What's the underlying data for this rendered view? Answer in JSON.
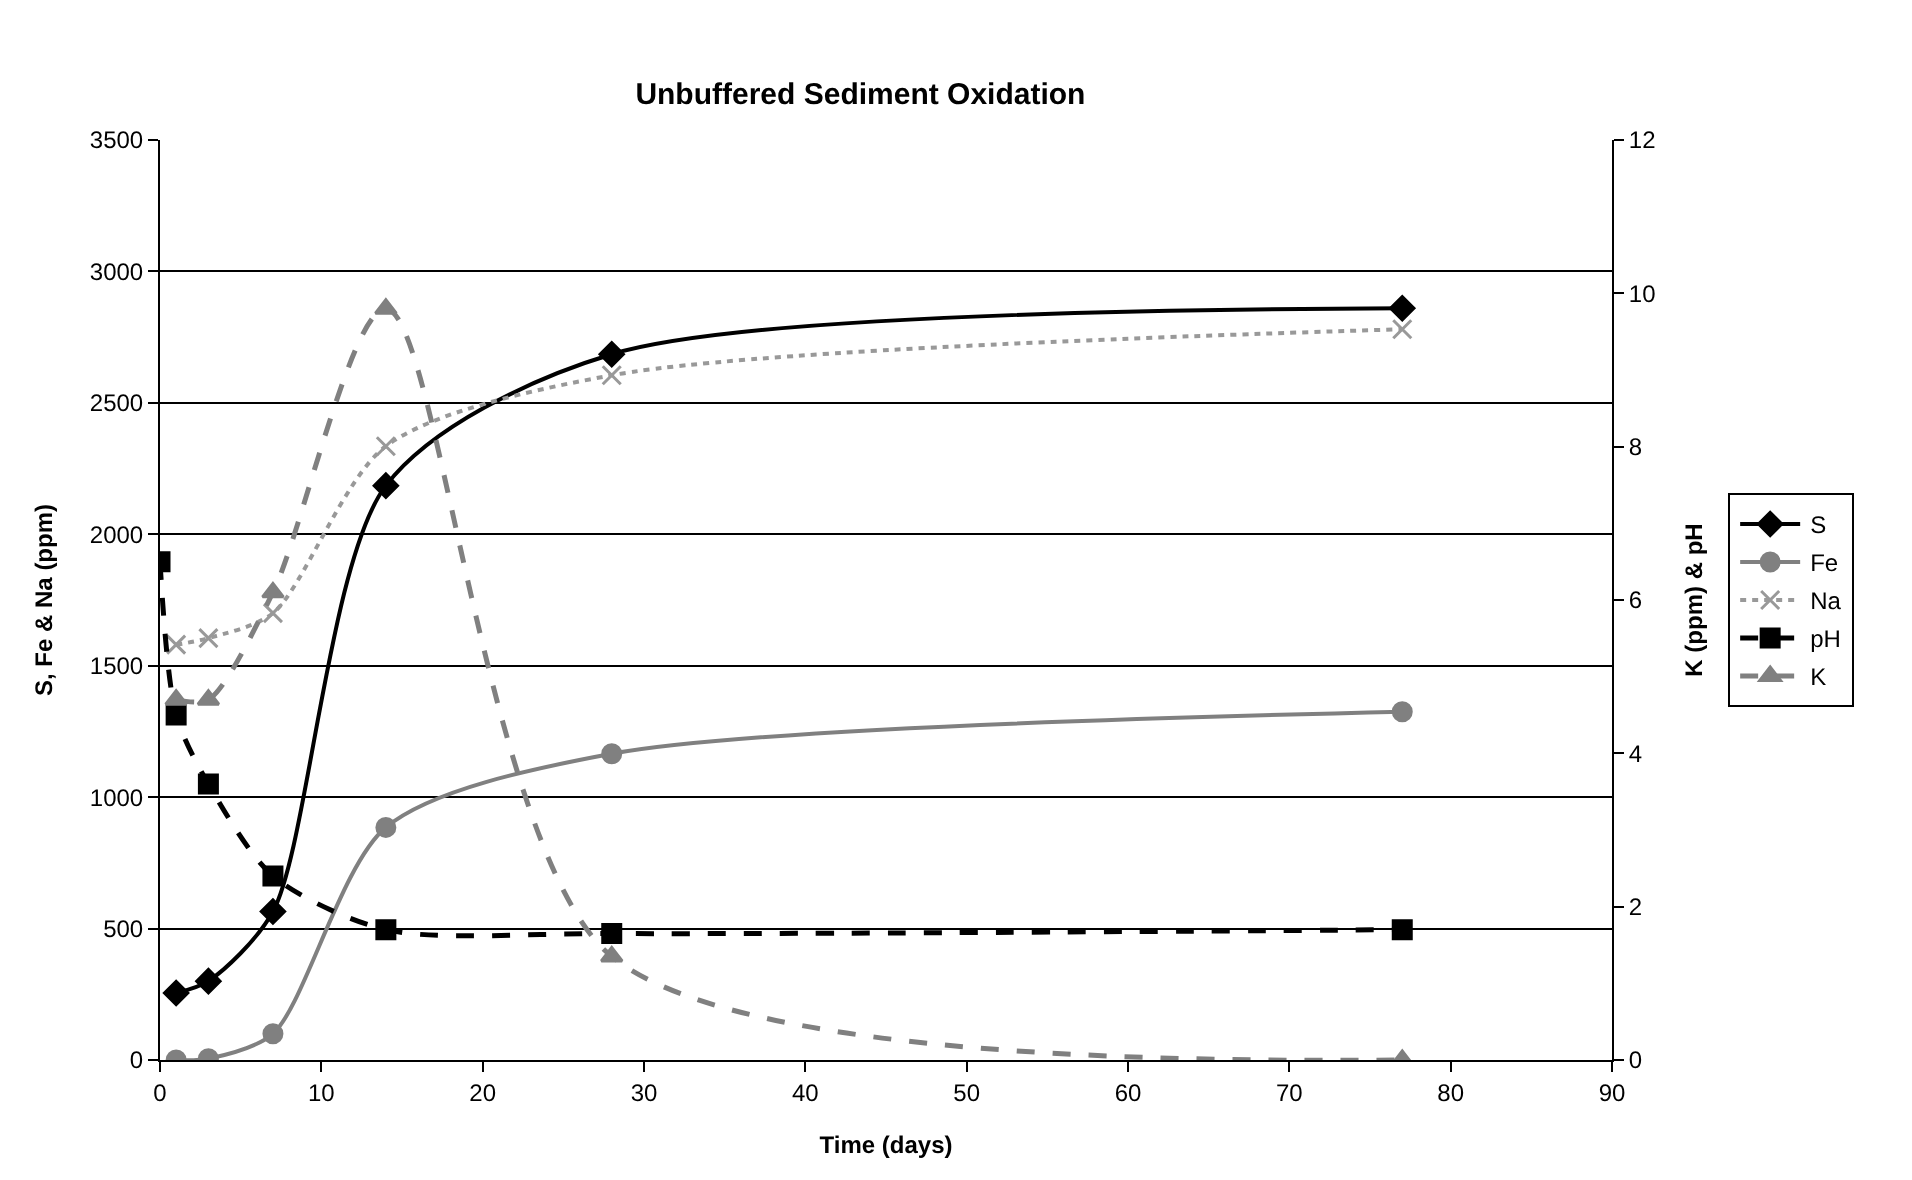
{
  "chart_data": {
    "type": "line",
    "title": "Unbuffered Sediment Oxidation",
    "xlabel": "Time (days)",
    "ylabel": "S, Fe & Na (ppm)",
    "y2label": "K (ppm) & pH",
    "x": [
      1,
      3,
      7,
      14,
      28,
      77
    ],
    "series": [
      {
        "name": "S",
        "color": "#000000",
        "marker": "diamond",
        "line_style": "solid",
        "values": [
          255,
          300,
          565,
          2185,
          2685,
          2860
        ]
      },
      {
        "name": "Fe",
        "color": "#808080",
        "marker": "circle",
        "line_style": "solid",
        "values": [
          0,
          5,
          100,
          885,
          1165,
          1325
        ]
      },
      {
        "name": "Na",
        "color": "#999999",
        "marker": "cross",
        "line_style": "dotted",
        "values": [
          1580,
          1605,
          1700,
          2335,
          2605,
          2780
        ]
      },
      {
        "name": "pH",
        "color": "#000000",
        "marker": "square",
        "line_style": "dashed",
        "axis": "y2",
        "x": [
          0,
          1,
          3,
          7,
          14,
          28,
          77
        ],
        "values": [
          6.5,
          4.5,
          3.6,
          2.4,
          1.7,
          1.65,
          1.7
        ]
      },
      {
        "name": "K",
        "color": "#808080",
        "marker": "triangle",
        "line_style": "dashed",
        "axis": "y2",
        "values": [
          4.7,
          4.7,
          6.1,
          9.8,
          1.35,
          0
        ]
      }
    ],
    "xlim": [
      0,
      90
    ],
    "xticks": [
      0,
      10,
      20,
      30,
      40,
      50,
      60,
      70,
      80,
      90
    ],
    "ylim": [
      0,
      3500
    ],
    "yticks": [
      0,
      500,
      1000,
      1500,
      2000,
      2500,
      3000,
      3500
    ],
    "y2lim": [
      0,
      12
    ],
    "y2ticks": [
      0,
      2,
      4,
      6,
      8,
      10,
      12
    ],
    "grid": "y",
    "legend": "right"
  }
}
